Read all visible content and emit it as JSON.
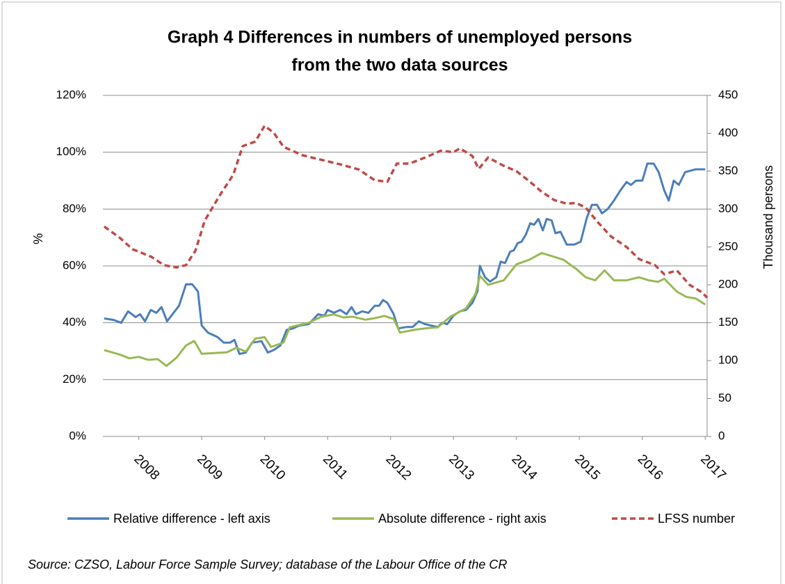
{
  "chart_data": {
    "type": "line",
    "title_lines": [
      "Graph 4      Differences in numbers of  unemployed persons",
      "from the two data sources"
    ],
    "ylabel": "%",
    "y2label": "Thousand persons",
    "source": "Source: CZSO, Labour Force Sample Survey; database of the Labour Office of the CR",
    "xlim": [
      2007.43,
      2017.03
    ],
    "xticks": [
      2008,
      2009,
      2010,
      2011,
      2012,
      2013,
      2014,
      2015,
      2016,
      2017
    ],
    "ylim": [
      0,
      120
    ],
    "yticks": [
      {
        "value": 0,
        "label": "0%"
      },
      {
        "value": 20,
        "label": "20%"
      },
      {
        "value": 40,
        "label": "40%"
      },
      {
        "value": 60,
        "label": "60%"
      },
      {
        "value": 80,
        "label": "80%"
      },
      {
        "value": 100,
        "label": "100%"
      },
      {
        "value": 120,
        "label": "120%"
      }
    ],
    "y2lim": [
      0,
      450
    ],
    "y2ticks": [
      0,
      50,
      100,
      150,
      200,
      250,
      300,
      350,
      400,
      450
    ],
    "grid": true,
    "legend": "bottom",
    "series": [
      {
        "name": "Relative difference -  left axis",
        "color": "#4a7ebb",
        "dash": false,
        "axis": "y",
        "x": [
          2007.45,
          2007.6,
          2007.72,
          2007.83,
          2007.95,
          2008.02,
          2008.1,
          2008.19,
          2008.28,
          2008.36,
          2008.45,
          2008.64,
          2008.75,
          2008.85,
          2008.94,
          2009.0,
          2009.1,
          2009.25,
          2009.35,
          2009.45,
          2009.52,
          2009.6,
          2009.7,
          2009.8,
          2009.95,
          2010.05,
          2010.15,
          2010.25,
          2010.35,
          2010.45,
          2010.55,
          2010.7,
          2010.85,
          2010.95,
          2011.0,
          2011.1,
          2011.2,
          2011.3,
          2011.38,
          2011.45,
          2011.55,
          2011.65,
          2011.75,
          2011.82,
          2011.88,
          2011.95,
          2012.05,
          2012.12,
          2012.25,
          2012.35,
          2012.45,
          2012.55,
          2012.65,
          2012.75,
          2012.82,
          2012.9,
          2013.0,
          2013.1,
          2013.2,
          2013.3,
          2013.38,
          2013.42,
          2013.5,
          2013.58,
          2013.68,
          2013.75,
          2013.82,
          2013.9,
          2013.96,
          2014.02,
          2014.08,
          2014.15,
          2014.22,
          2014.28,
          2014.35,
          2014.42,
          2014.48,
          2014.56,
          2014.62,
          2014.7,
          2014.8,
          2014.92,
          2015.02,
          2015.12,
          2015.2,
          2015.28,
          2015.36,
          2015.45,
          2015.55,
          2015.65,
          2015.75,
          2015.82,
          2015.9,
          2016.0,
          2016.08,
          2016.18,
          2016.26,
          2016.35,
          2016.42,
          2016.5,
          2016.58,
          2016.68,
          2016.85,
          2017.0
        ],
        "values": [
          41.5,
          41,
          40,
          44,
          42,
          43,
          40.5,
          44.5,
          43.5,
          45.5,
          40.5,
          46,
          53.5,
          53.5,
          51,
          39,
          36.5,
          35,
          33,
          33,
          34,
          29,
          29.5,
          33,
          33.5,
          29.5,
          30.5,
          32,
          37.5,
          38,
          39,
          39.5,
          43,
          42.5,
          44.5,
          43.5,
          44.5,
          43,
          45.5,
          43,
          44,
          43.5,
          46,
          46,
          48,
          47,
          43,
          38,
          38.5,
          38.5,
          40.5,
          39.5,
          39,
          38.5,
          40,
          39.5,
          42.5,
          44,
          44.5,
          47,
          51,
          60,
          56,
          54.5,
          56,
          61.5,
          61,
          65,
          65.5,
          68,
          68.5,
          71,
          75,
          74.5,
          76.5,
          72.5,
          76.5,
          76,
          71.5,
          72,
          67.5,
          67.5,
          68.5,
          77,
          81.5,
          81.5,
          78.5,
          80,
          83,
          86.5,
          89.5,
          88.5,
          90,
          90,
          96,
          96,
          93,
          86.5,
          83,
          90,
          88.5,
          93,
          94,
          94
        ]
      },
      {
        "name": "Absolute difference - right axis",
        "color": "#98b954",
        "dash": false,
        "axis": "y2",
        "x": [
          2007.45,
          2007.7,
          2007.85,
          2008.0,
          2008.15,
          2008.3,
          2008.44,
          2008.6,
          2008.75,
          2008.88,
          2009.0,
          2009.2,
          2009.4,
          2009.55,
          2009.7,
          2009.85,
          2010.0,
          2010.1,
          2010.3,
          2010.4,
          2010.55,
          2010.7,
          2010.9,
          2011.1,
          2011.25,
          2011.4,
          2011.6,
          2011.75,
          2011.9,
          2012.05,
          2012.15,
          2012.4,
          2012.6,
          2012.75,
          2012.95,
          2013.2,
          2013.35,
          2013.42,
          2013.55,
          2013.8,
          2014.0,
          2014.2,
          2014.4,
          2014.6,
          2014.75,
          2014.95,
          2015.1,
          2015.25,
          2015.4,
          2015.55,
          2015.75,
          2015.95,
          2016.1,
          2016.25,
          2016.35,
          2016.55,
          2016.7,
          2016.85,
          2017.0
        ],
        "values": [
          114,
          108,
          103,
          105,
          101,
          102,
          93,
          104,
          120,
          126,
          109,
          110,
          111,
          117,
          112,
          129,
          131,
          118,
          124,
          144,
          147,
          150,
          158,
          161,
          157,
          158,
          154,
          156,
          159,
          155,
          137,
          141,
          143,
          144,
          158,
          169,
          188,
          212,
          200,
          206,
          227,
          233,
          242,
          237,
          233,
          221,
          210,
          206,
          219,
          206,
          206,
          210,
          206,
          204,
          208,
          191,
          184,
          182,
          174
        ]
      },
      {
        "name": "LFSS number",
        "color": "#be4b48",
        "dash": true,
        "axis": "y2",
        "x": [
          2007.45,
          2007.7,
          2007.9,
          2008.2,
          2008.4,
          2008.6,
          2008.75,
          2008.9,
          2009.05,
          2009.3,
          2009.5,
          2009.65,
          2009.85,
          2010.0,
          2010.15,
          2010.3,
          2010.6,
          2010.9,
          2011.2,
          2011.5,
          2011.75,
          2011.95,
          2012.1,
          2012.3,
          2012.55,
          2012.8,
          2013.0,
          2013.1,
          2013.3,
          2013.4,
          2013.55,
          2013.8,
          2014.0,
          2014.2,
          2014.4,
          2014.6,
          2014.8,
          2014.95,
          2015.1,
          2015.3,
          2015.5,
          2015.75,
          2015.95,
          2016.2,
          2016.35,
          2016.55,
          2016.75,
          2016.95,
          2017.03
        ],
        "values": [
          277,
          262,
          247,
          237,
          226,
          223,
          226,
          245,
          285,
          320,
          345,
          383,
          389,
          410,
          400,
          382,
          371,
          365,
          359,
          352,
          338,
          336,
          360,
          360,
          368,
          377,
          375,
          380,
          370,
          353,
          368,
          357,
          350,
          337,
          323,
          312,
          307,
          308,
          302,
          282,
          264,
          250,
          234,
          226,
          214,
          219,
          200,
          190,
          183
        ]
      }
    ]
  }
}
